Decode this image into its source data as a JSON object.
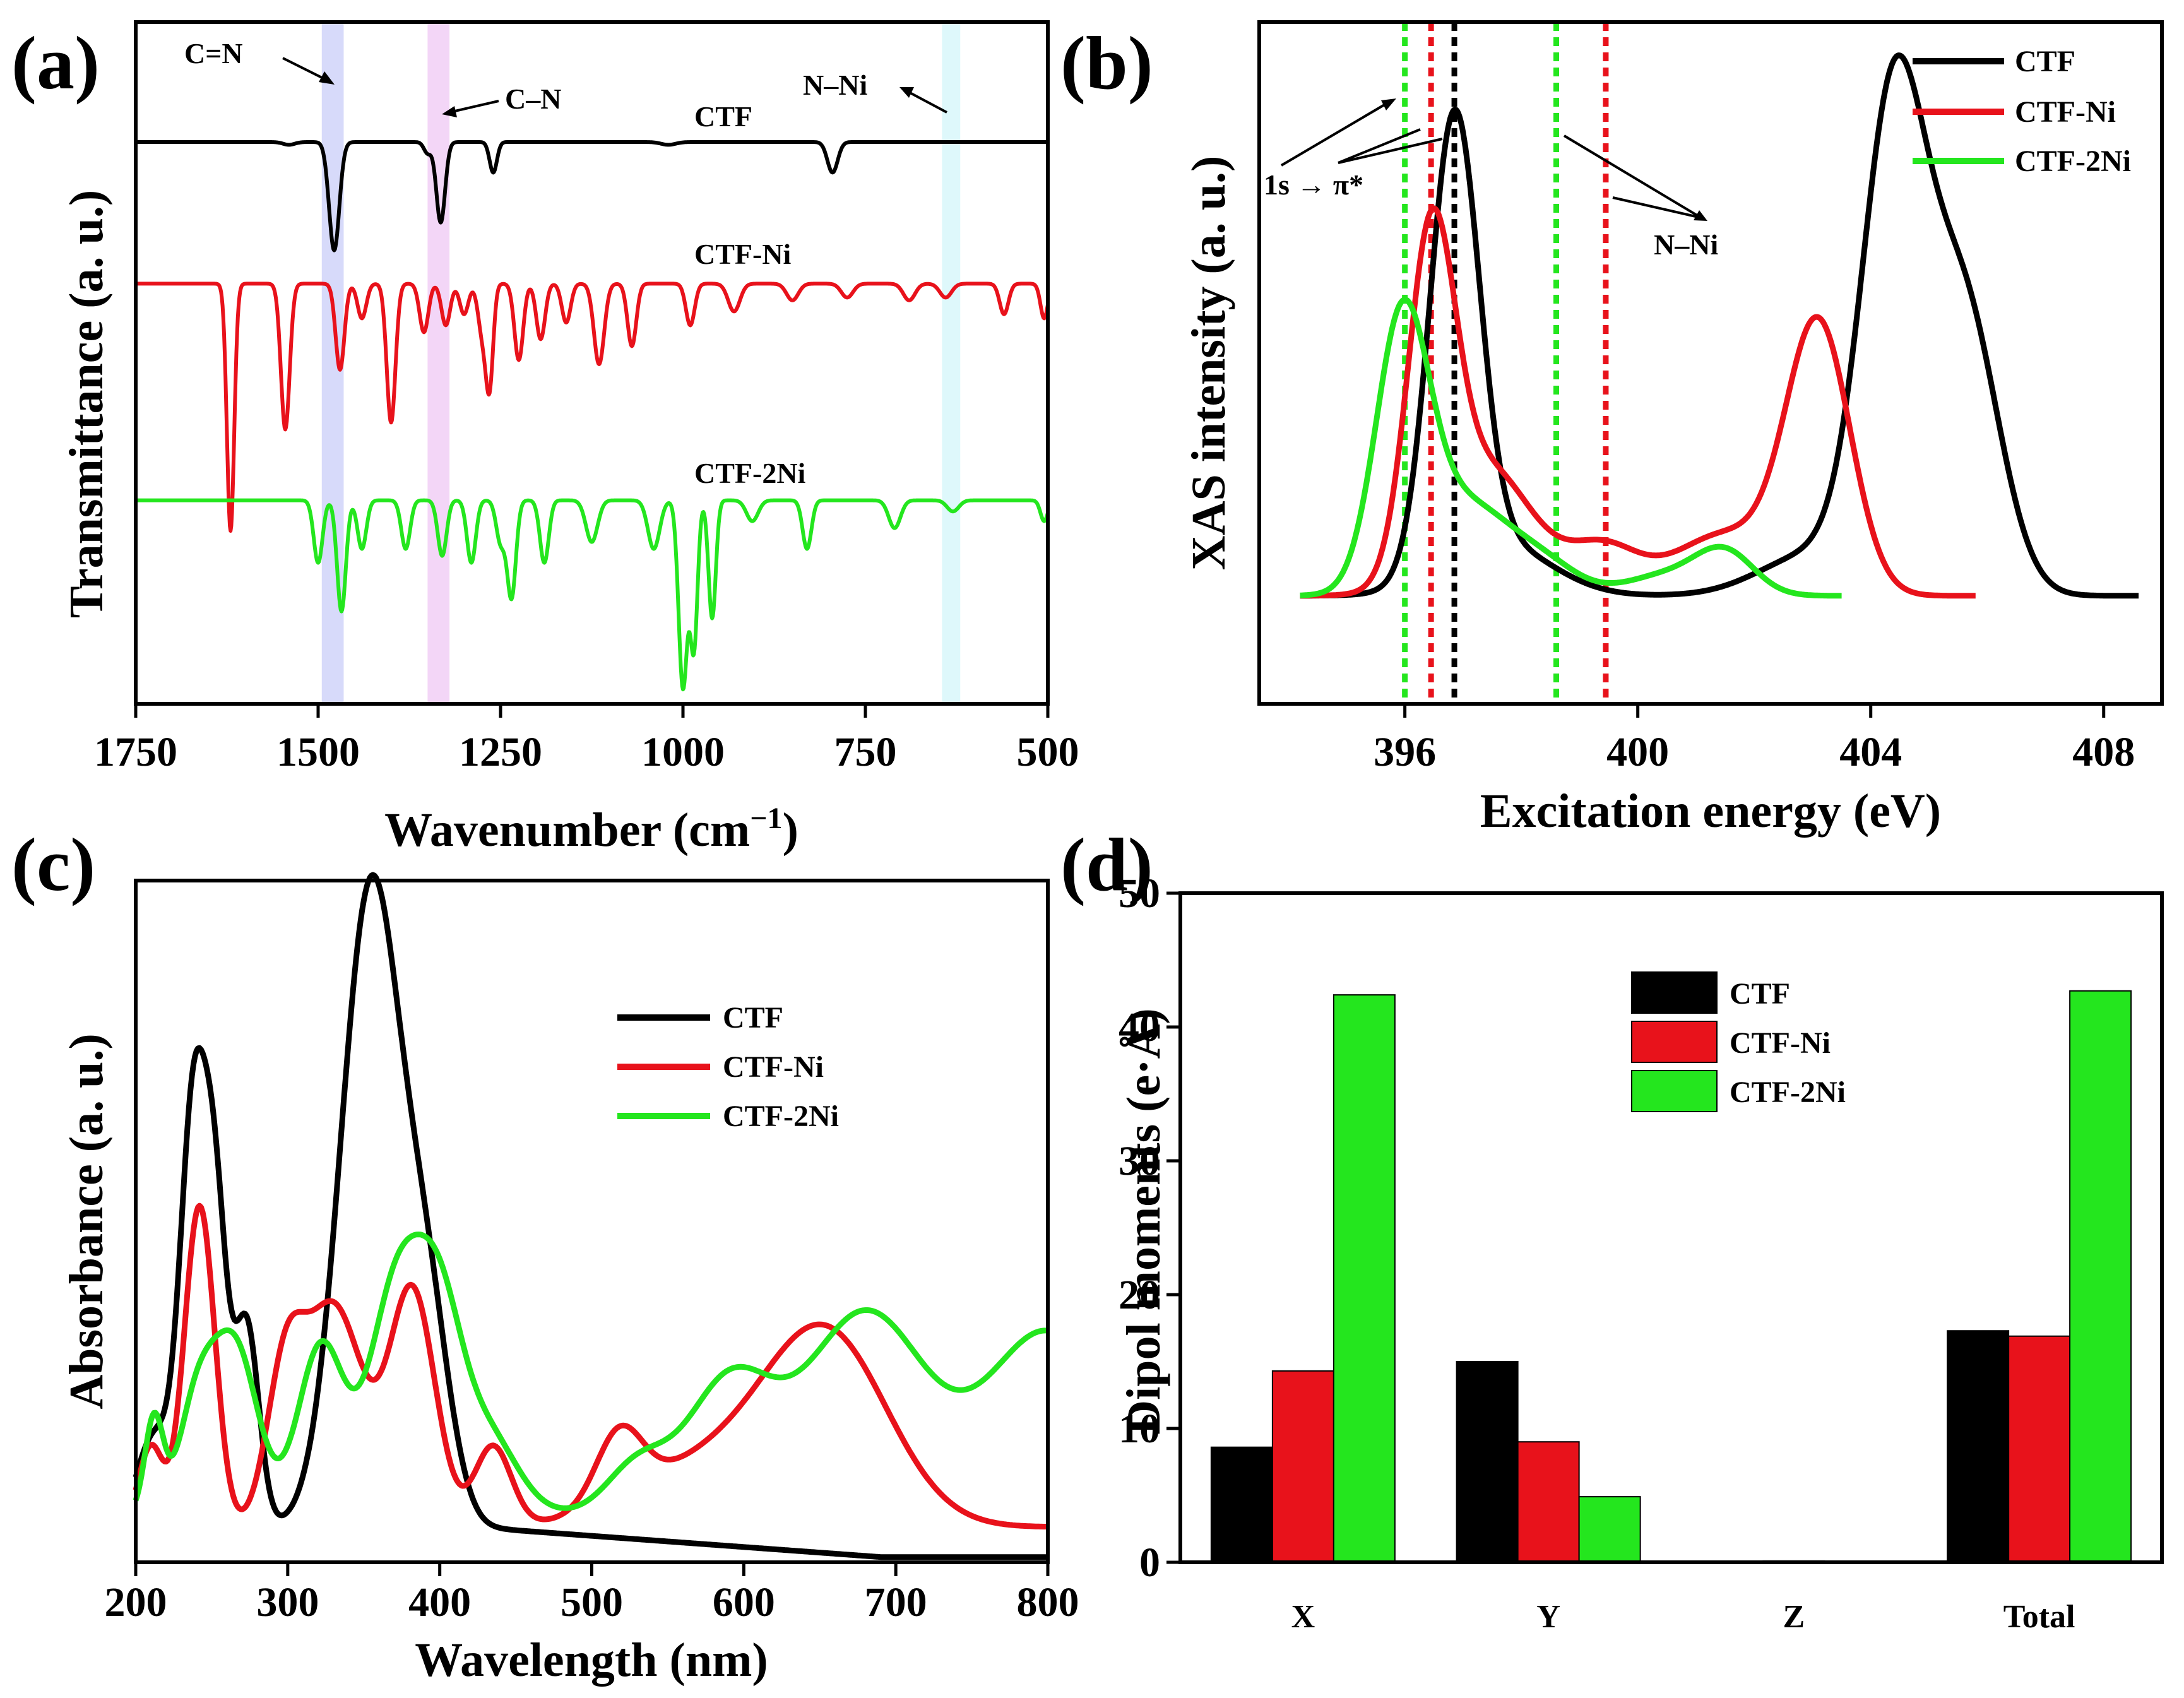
{
  "colors": {
    "ctf": "#000000",
    "ctf_ni": "#e8121b",
    "ctf_2ni": "#24e61e",
    "cn_band": "#b7bcf5",
    "c_n_band": "#eab4f0",
    "nni_band": "#c2f2f8"
  },
  "chart_data": [
    {
      "id": "a",
      "panel_label": "(a)",
      "type": "line",
      "xlabel_main": "Wavenumber (cm",
      "xlabel_sup": "−1",
      "xlabel_close": ")",
      "ylabel": "Transmittance (a. u.)",
      "xlim": [
        1750,
        500
      ],
      "xticks": [
        "1750",
        "1500",
        "1250",
        "1000",
        "750",
        "500"
      ],
      "xtick_values": [
        1750,
        1500,
        1250,
        1000,
        750,
        500
      ],
      "bands": [
        {
          "name": "C=N",
          "range": [
            1465,
            1495
          ]
        },
        {
          "name": "C–N",
          "range": [
            1320,
            1350
          ]
        },
        {
          "name": "N–Ni",
          "range": [
            620,
            645
          ]
        }
      ],
      "annotations": {
        "cn_double": "C=N",
        "cn_single": "C–N",
        "nni": "N–Ni"
      },
      "series": [
        {
          "name": "CTF",
          "baseline": 0.0,
          "peaks": [
            [
              1478,
              0.78,
              7
            ],
            [
              1332,
              0.58,
              6
            ],
            [
              1260,
              0.22,
              5
            ],
            [
              1350,
              0.08,
              5
            ],
            [
              1540,
              0.02,
              8
            ],
            [
              795,
              0.22,
              7
            ],
            [
              1020,
              0.02,
              10
            ]
          ]
        },
        {
          "name": "CTF-Ni",
          "baseline": 1.02,
          "peaks": [
            [
              1620,
              1.78,
              5
            ],
            [
              1545,
              1.05,
              6
            ],
            [
              1470,
              0.62,
              6
            ],
            [
              1400,
              1.0,
              6
            ],
            [
              1440,
              0.25,
              6
            ],
            [
              1355,
              0.35,
              6
            ],
            [
              1325,
              0.3,
              6
            ],
            [
              1300,
              0.22,
              6
            ],
            [
              1275,
              0.35,
              6
            ],
            [
              1265,
              0.7,
              5
            ],
            [
              1225,
              0.55,
              6
            ],
            [
              1195,
              0.4,
              6
            ],
            [
              1160,
              0.28,
              6
            ],
            [
              1115,
              0.58,
              7
            ],
            [
              1070,
              0.45,
              6
            ],
            [
              990,
              0.3,
              6
            ],
            [
              930,
              0.2,
              8
            ],
            [
              850,
              0.12,
              8
            ],
            [
              775,
              0.1,
              8
            ],
            [
              690,
              0.12,
              8
            ],
            [
              640,
              0.1,
              8
            ],
            [
              560,
              0.22,
              6
            ],
            [
              505,
              0.25,
              5
            ]
          ]
        },
        {
          "name": "CTF-2Ni",
          "baseline": 2.58,
          "peaks": [
            [
              1500,
              0.45,
              6
            ],
            [
              1468,
              0.8,
              6
            ],
            [
              1440,
              0.35,
              6
            ],
            [
              1380,
              0.35,
              6
            ],
            [
              1330,
              0.4,
              6
            ],
            [
              1290,
              0.45,
              6
            ],
            [
              1250,
              0.3,
              6
            ],
            [
              1235,
              0.7,
              6
            ],
            [
              1190,
              0.45,
              6
            ],
            [
              1125,
              0.3,
              8
            ],
            [
              1040,
              0.35,
              8
            ],
            [
              1000,
              1.35,
              6
            ],
            [
              985,
              1.05,
              5
            ],
            [
              960,
              0.85,
              5
            ],
            [
              905,
              0.15,
              8
            ],
            [
              830,
              0.35,
              6
            ],
            [
              710,
              0.2,
              8
            ],
            [
              630,
              0.08,
              8
            ],
            [
              505,
              0.15,
              5
            ]
          ]
        }
      ]
    },
    {
      "id": "b",
      "panel_label": "(b)",
      "type": "line",
      "xlabel": "Excitation energy (eV)",
      "ylabel": "XAS intensity (a. u.)",
      "xlim": [
        393.5,
        409
      ],
      "xticks": [
        "396",
        "400",
        "404",
        "408"
      ],
      "xtick_values": [
        396,
        400,
        404,
        408
      ],
      "legend": [
        "CTF",
        "CTF-Ni",
        "CTF-2Ni"
      ],
      "annotations": {
        "pi_star": "1s → π*",
        "nni": "N–Ni"
      },
      "dotted_lines": [
        {
          "series": "CTF-2Ni",
          "x": 396.0
        },
        {
          "series": "CTF-Ni",
          "x": 396.45
        },
        {
          "series": "CTF",
          "x": 396.85
        },
        {
          "series": "CTF-2Ni",
          "x": 398.6
        },
        {
          "series": "CTF-Ni",
          "x": 399.45
        }
      ],
      "series": [
        {
          "name": "CTF",
          "x_start": 394.2,
          "x_end": 408.6,
          "baseline": 0.02,
          "peaks": [
            [
              396.85,
              0.88,
              0.42
            ],
            [
              397.6,
              0.1,
              0.9
            ],
            [
              404.4,
              0.95,
              0.55
            ],
            [
              405.6,
              0.55,
              0.6
            ],
            [
              403.0,
              0.08,
              0.9
            ]
          ]
        },
        {
          "name": "CTF-Ni",
          "x_start": 394.2,
          "x_end": 405.8,
          "baseline": 0.02,
          "peaks": [
            [
              396.45,
              0.63,
              0.4
            ],
            [
              397.4,
              0.25,
              0.8
            ],
            [
              399.4,
              0.09,
              0.6
            ],
            [
              401.5,
              0.12,
              0.9
            ],
            [
              403.1,
              0.52,
              0.55
            ]
          ]
        },
        {
          "name": "CTF-2Ni",
          "x_start": 394.2,
          "x_end": 403.5,
          "baseline": 0.02,
          "peaks": [
            [
              395.95,
              0.5,
              0.45
            ],
            [
              397.0,
              0.18,
              0.8
            ],
            [
              398.4,
              0.05,
              0.6
            ],
            [
              401.5,
              0.08,
              0.5
            ],
            [
              400.5,
              0.04,
              0.7
            ]
          ]
        }
      ]
    },
    {
      "id": "c",
      "panel_label": "(c)",
      "type": "line",
      "xlabel": "Wavelength (nm)",
      "ylabel": "Absorbance (a. u.)",
      "xlim": [
        200,
        800
      ],
      "xticks": [
        "200",
        "300",
        "400",
        "500",
        "600",
        "700",
        "800"
      ],
      "xtick_values": [
        200,
        300,
        400,
        500,
        600,
        700,
        800
      ],
      "legend": [
        "CTF",
        "CTF-Ni",
        "CTF-2Ni"
      ],
      "series": [
        {
          "name": "CTF",
          "baseline": 0.05,
          "peaks": [
            [
              238,
              0.5,
              8
            ],
            [
              252,
              0.47,
              8
            ],
            [
              273,
              0.3,
              8
            ],
            [
              230,
              0.12,
              10
            ],
            [
              355,
              0.96,
              20
            ],
            [
              392,
              0.28,
              15
            ],
            [
              210,
              0.12,
              10
            ]
          ]
        },
        {
          "name": "CTF-Ni",
          "baseline": 0.05,
          "peaks": [
            [
              210,
              0.12,
              8
            ],
            [
              242,
              0.48,
              10
            ],
            [
              298,
              0.2,
              12
            ],
            [
              330,
              0.33,
              20
            ],
            [
              382,
              0.35,
              15
            ],
            [
              435,
              0.12,
              12
            ],
            [
              518,
              0.1,
              15
            ],
            [
              655,
              0.28,
              40
            ],
            [
              595,
              0.06,
              40
            ],
            [
              545,
              0.05,
              40
            ]
          ]
        },
        {
          "name": "CTF-2Ni",
          "baseline": 0.07,
          "peaks": [
            [
              212,
              0.14,
              6
            ],
            [
              240,
              0.15,
              12
            ],
            [
              265,
              0.25,
              15
            ],
            [
              322,
              0.25,
              15
            ],
            [
              372,
              0.34,
              18
            ],
            [
              400,
              0.24,
              15
            ],
            [
              430,
              0.12,
              20
            ],
            [
              530,
              0.07,
              20
            ],
            [
              590,
              0.19,
              28
            ],
            [
              680,
              0.3,
              40
            ],
            [
              800,
              0.27,
              40
            ]
          ]
        }
      ]
    },
    {
      "id": "d",
      "panel_label": "(d)",
      "type": "bar",
      "ylabel": "Dipol moments (e·Å)",
      "ylim": [
        0,
        50
      ],
      "yticks": [
        "0",
        "10",
        "20",
        "30",
        "40",
        "50"
      ],
      "ytick_values": [
        0,
        10,
        20,
        30,
        40,
        50
      ],
      "categories": [
        "X",
        "Y",
        "Z",
        "Total"
      ],
      "legend": [
        "CTF",
        "CTF-Ni",
        "CTF-2Ni"
      ],
      "series": [
        {
          "name": "CTF",
          "values": [
            8.6,
            15.0,
            0.05,
            17.3
          ]
        },
        {
          "name": "CTF-Ni",
          "values": [
            14.3,
            9.0,
            0.1,
            16.9
          ]
        },
        {
          "name": "CTF-2Ni",
          "values": [
            42.4,
            4.9,
            0.08,
            42.7
          ]
        }
      ]
    }
  ]
}
